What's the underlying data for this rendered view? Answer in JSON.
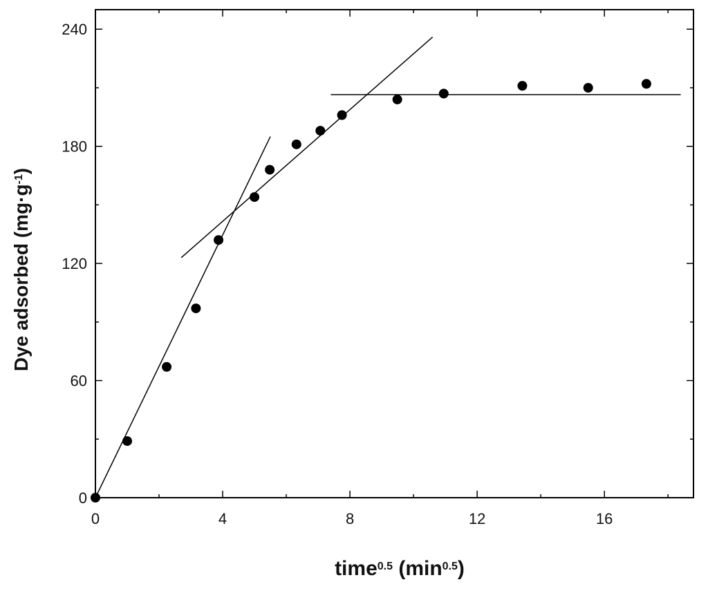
{
  "chart_data": {
    "type": "scatter",
    "title": "",
    "xlabel": {
      "main": "time",
      "sup": "0.5",
      "unit_open": " (min",
      "unit_sup": "0.5",
      "unit_close": ")"
    },
    "ylabel": "Dye adsorbed (mg·g",
    "ylabel_sup": "-1",
    "ylabel_close": ")",
    "xlim": [
      0,
      18.8
    ],
    "ylim": [
      0,
      250
    ],
    "xticks": [
      0,
      4,
      8,
      12,
      16
    ],
    "yticks": [
      0,
      60,
      120,
      180,
      240
    ],
    "xtick_labels": [
      "0",
      "4",
      "8",
      "12",
      "16"
    ],
    "ytick_labels": [
      "0",
      "60",
      "120",
      "180",
      "240"
    ],
    "grid": false,
    "legend": "none",
    "series": [
      {
        "type": "scatter",
        "x": [
          0,
          1.0,
          2.24,
          3.16,
          3.87,
          5.0,
          5.48,
          6.32,
          7.07,
          7.75,
          9.49,
          10.95,
          13.42,
          15.49,
          17.32
        ],
        "y": [
          0,
          29,
          67,
          97,
          132,
          154,
          168,
          181,
          188,
          196,
          204,
          207,
          211,
          210,
          212
        ]
      }
    ],
    "fit_lines": [
      {
        "x": [
          0,
          5.5
        ],
        "y": [
          0,
          185
        ]
      },
      {
        "x": [
          2.7,
          10.6
        ],
        "y": [
          123,
          236
        ]
      },
      {
        "x": [
          7.4,
          18.4
        ],
        "y": [
          206.5,
          206.5
        ]
      }
    ],
    "colors": {
      "marker": "#000000",
      "line": "#000000",
      "axis": "#000000"
    }
  }
}
